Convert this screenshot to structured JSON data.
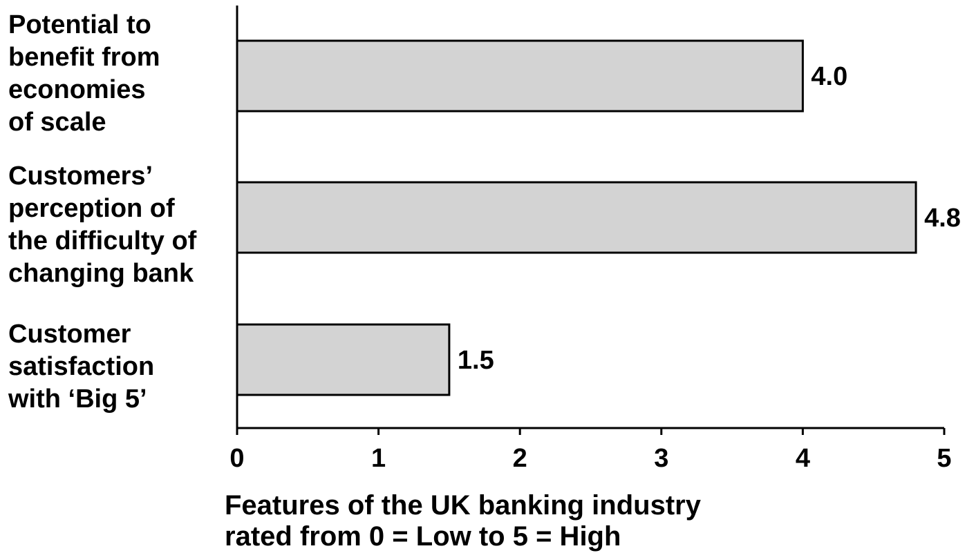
{
  "chart_data": {
    "type": "bar",
    "orientation": "horizontal",
    "categories": [
      [
        "Potential to",
        "benefit from",
        "economies",
        "of scale"
      ],
      [
        "Customers’",
        "perception of",
        "the difficulty of",
        "changing bank"
      ],
      [
        "Customer",
        "satisfaction",
        "with ‘Big 5’"
      ]
    ],
    "values": [
      4.0,
      4.8,
      1.5
    ],
    "value_labels": [
      "4.0",
      "4.8",
      "1.5"
    ],
    "xlim": [
      0,
      5
    ],
    "xticks": [
      "0",
      "1",
      "2",
      "3",
      "4",
      "5"
    ],
    "xlabel": [
      "Features of the UK banking industry",
      "rated from 0 = Low to 5 = High"
    ],
    "title": "",
    "grid": false,
    "legend": null,
    "colors": {
      "bar_fill": "#d3d3d3",
      "bar_stroke": "#000000",
      "axis": "#000000",
      "text": "#000000"
    }
  }
}
